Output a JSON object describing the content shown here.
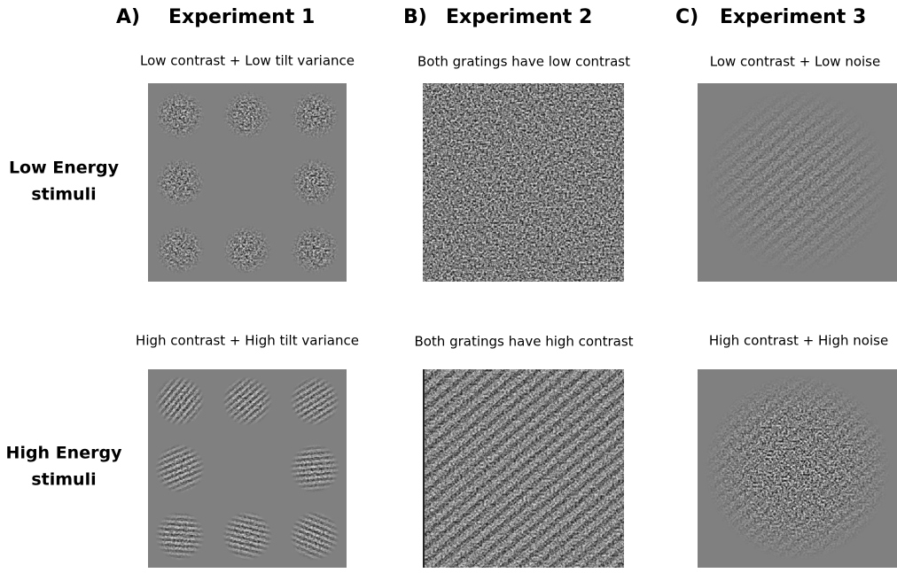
{
  "panels": [
    {
      "letter": "A)",
      "title": "Experiment 1",
      "captions": [
        "Low contrast + Low tilt variance",
        "High contrast + High tilt variance"
      ]
    },
    {
      "letter": "B)",
      "title": "Experiment 2",
      "captions": [
        "Both gratings have low contrast",
        "Both gratings have high contrast"
      ]
    },
    {
      "letter": "C)",
      "title": "Experiment 3",
      "captions": [
        "Low contrast + Low noise",
        "High contrast + High noise"
      ]
    }
  ],
  "row_labels": [
    [
      "Low Energy",
      "stimuli"
    ],
    [
      "High Energy",
      "stimuli"
    ]
  ]
}
